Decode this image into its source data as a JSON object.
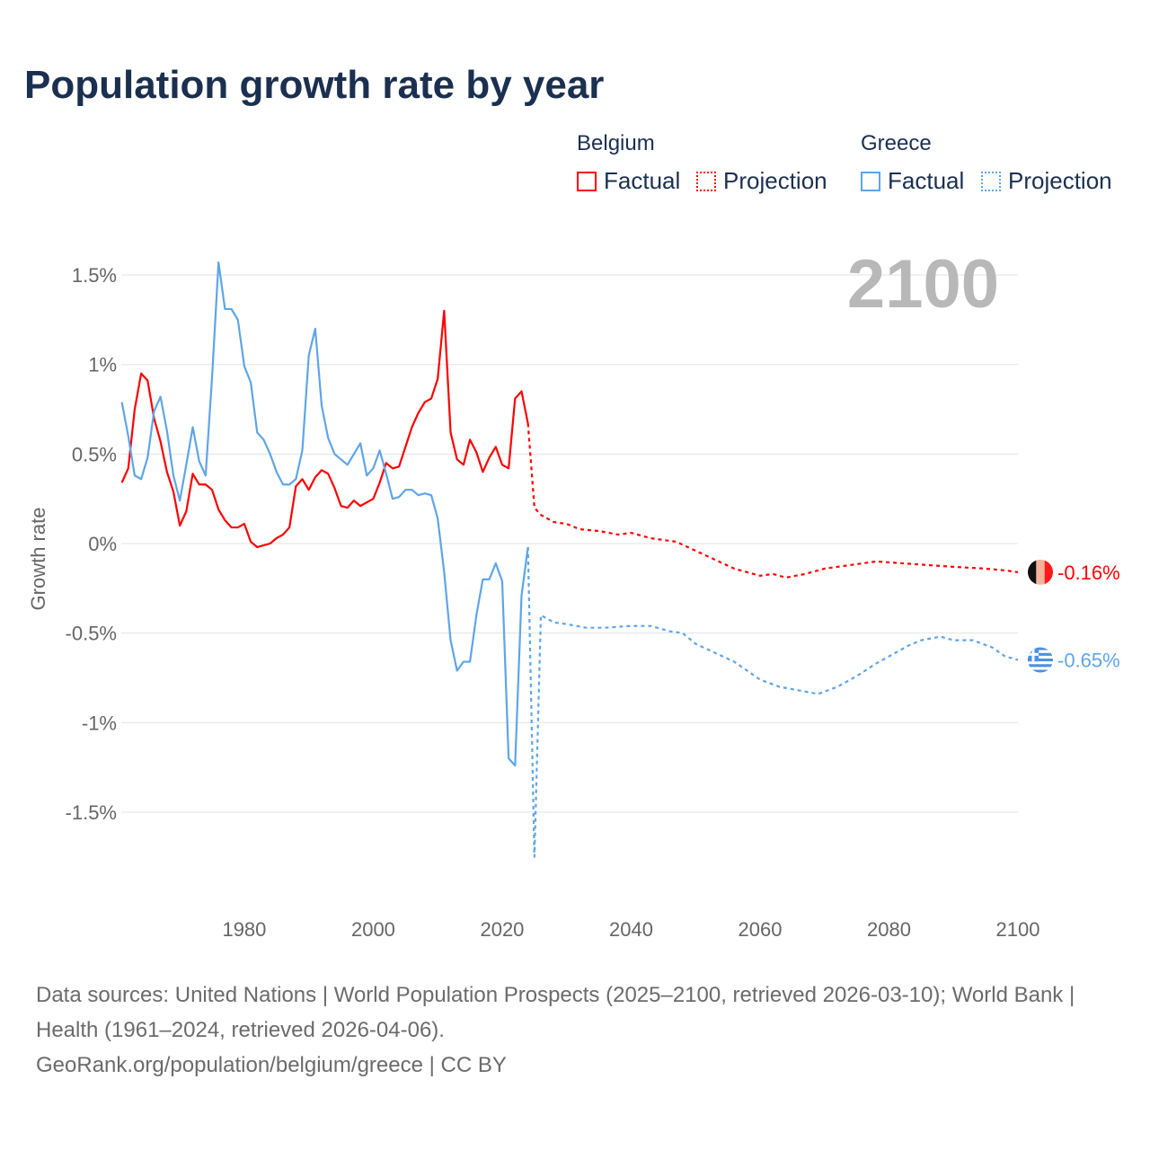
{
  "title": "Population growth rate by year",
  "legend": {
    "groups": [
      {
        "country": "Belgium",
        "factual": "Factual",
        "projection": "Projection",
        "color": "#ff0000"
      },
      {
        "country": "Greece",
        "factual": "Factual",
        "projection": "Projection",
        "color": "#5ea5e8"
      }
    ]
  },
  "year_overlay": "2100",
  "footer": {
    "sources": "Data sources: United Nations | World Population Prospects (2025–2100, retrieved 2026-03-10); World Bank | Health (1961–2024, retrieved 2026-04-06).",
    "credit": "GeoRank.org/population/belgium/greece | CC BY"
  },
  "chart_data": {
    "type": "line",
    "title": "Population growth rate by year",
    "xlabel": "",
    "ylabel": "Growth rate",
    "xlim": [
      1961,
      2100
    ],
    "ylim": [
      -1.9,
      1.75
    ],
    "xticks": [
      1980,
      2000,
      2020,
      2040,
      2060,
      2080,
      2100
    ],
    "xtick_labels": [
      "1980",
      "2000",
      "2020",
      "2040",
      "2060",
      "2080",
      "2100"
    ],
    "yticks": [
      1.5,
      1,
      0.5,
      0,
      -0.5,
      -1,
      -1.5
    ],
    "ytick_labels": [
      "1.5%",
      "1%",
      "0.5%",
      "0%",
      "-0.5%",
      "-1%",
      "-1.5%"
    ],
    "grid": true,
    "legend_position": "top-right",
    "end_labels": [
      "-0.16%",
      "-0.65%"
    ],
    "series": [
      {
        "name": "Belgium Factual",
        "style": "solid",
        "color": "#ff0000",
        "x_start": 1961,
        "values": [
          0.34,
          0.42,
          0.75,
          0.95,
          0.91,
          0.7,
          0.57,
          0.4,
          0.29,
          0.1,
          0.18,
          0.39,
          0.33,
          0.33,
          0.3,
          0.19,
          0.13,
          0.09,
          0.09,
          0.11,
          0.01,
          -0.02,
          -0.01,
          0.0,
          0.03,
          0.05,
          0.09,
          0.32,
          0.36,
          0.3,
          0.37,
          0.41,
          0.39,
          0.31,
          0.21,
          0.2,
          0.24,
          0.21,
          0.23,
          0.25,
          0.34,
          0.45,
          0.42,
          0.43,
          0.54,
          0.65,
          0.73,
          0.79,
          0.81,
          0.92,
          1.3,
          0.62,
          0.47,
          0.44,
          0.58,
          0.51,
          0.4,
          0.48,
          0.54,
          0.44,
          0.42,
          0.81,
          0.85,
          0.67
        ]
      },
      {
        "name": "Belgium Projection",
        "style": "dotted",
        "color": "#ff0000",
        "x": [
          2024,
          2025,
          2026,
          2028,
          2030,
          2032,
          2035,
          2038,
          2040,
          2043,
          2047,
          2050,
          2053,
          2056,
          2060,
          2062,
          2064,
          2067,
          2070,
          2074,
          2078,
          2082,
          2086,
          2090,
          2095,
          2098,
          2100
        ],
        "y": [
          0.67,
          0.2,
          0.16,
          0.12,
          0.11,
          0.08,
          0.07,
          0.05,
          0.06,
          0.03,
          0.01,
          -0.04,
          -0.09,
          -0.14,
          -0.18,
          -0.17,
          -0.19,
          -0.17,
          -0.14,
          -0.12,
          -0.1,
          -0.11,
          -0.12,
          -0.13,
          -0.14,
          -0.15,
          -0.16
        ]
      },
      {
        "name": "Greece Factual",
        "style": "solid",
        "color": "#5ea5e8",
        "x_start": 1961,
        "values": [
          0.79,
          0.6,
          0.38,
          0.36,
          0.48,
          0.74,
          0.82,
          0.63,
          0.38,
          0.24,
          0.44,
          0.65,
          0.46,
          0.38,
          0.93,
          1.57,
          1.31,
          1.31,
          1.25,
          0.99,
          0.9,
          0.62,
          0.58,
          0.5,
          0.4,
          0.33,
          0.33,
          0.36,
          0.52,
          1.05,
          1.2,
          0.77,
          0.59,
          0.5,
          0.47,
          0.44,
          0.5,
          0.56,
          0.38,
          0.42,
          0.52,
          0.39,
          0.25,
          0.26,
          0.3,
          0.3,
          0.27,
          0.28,
          0.27,
          0.14,
          -0.16,
          -0.54,
          -0.71,
          -0.66,
          -0.66,
          -0.4,
          -0.2,
          -0.2,
          -0.11,
          -0.21,
          -1.2,
          -1.24,
          -0.29,
          -0.02
        ]
      },
      {
        "name": "Greece Projection",
        "style": "dotted",
        "color": "#5ea5e8",
        "x": [
          2024,
          2025,
          2026,
          2028,
          2030,
          2033,
          2036,
          2040,
          2043,
          2046,
          2048,
          2050,
          2053,
          2056,
          2058,
          2060,
          2063,
          2066,
          2069,
          2072,
          2075,
          2078,
          2080,
          2083,
          2085,
          2088,
          2090,
          2093,
          2096,
          2098,
          2100
        ],
        "y": [
          -0.02,
          -1.75,
          -0.4,
          -0.44,
          -0.45,
          -0.47,
          -0.47,
          -0.46,
          -0.46,
          -0.49,
          -0.5,
          -0.56,
          -0.61,
          -0.66,
          -0.71,
          -0.76,
          -0.8,
          -0.82,
          -0.84,
          -0.8,
          -0.74,
          -0.67,
          -0.63,
          -0.57,
          -0.54,
          -0.52,
          -0.54,
          -0.54,
          -0.58,
          -0.63,
          -0.65
        ]
      }
    ]
  }
}
